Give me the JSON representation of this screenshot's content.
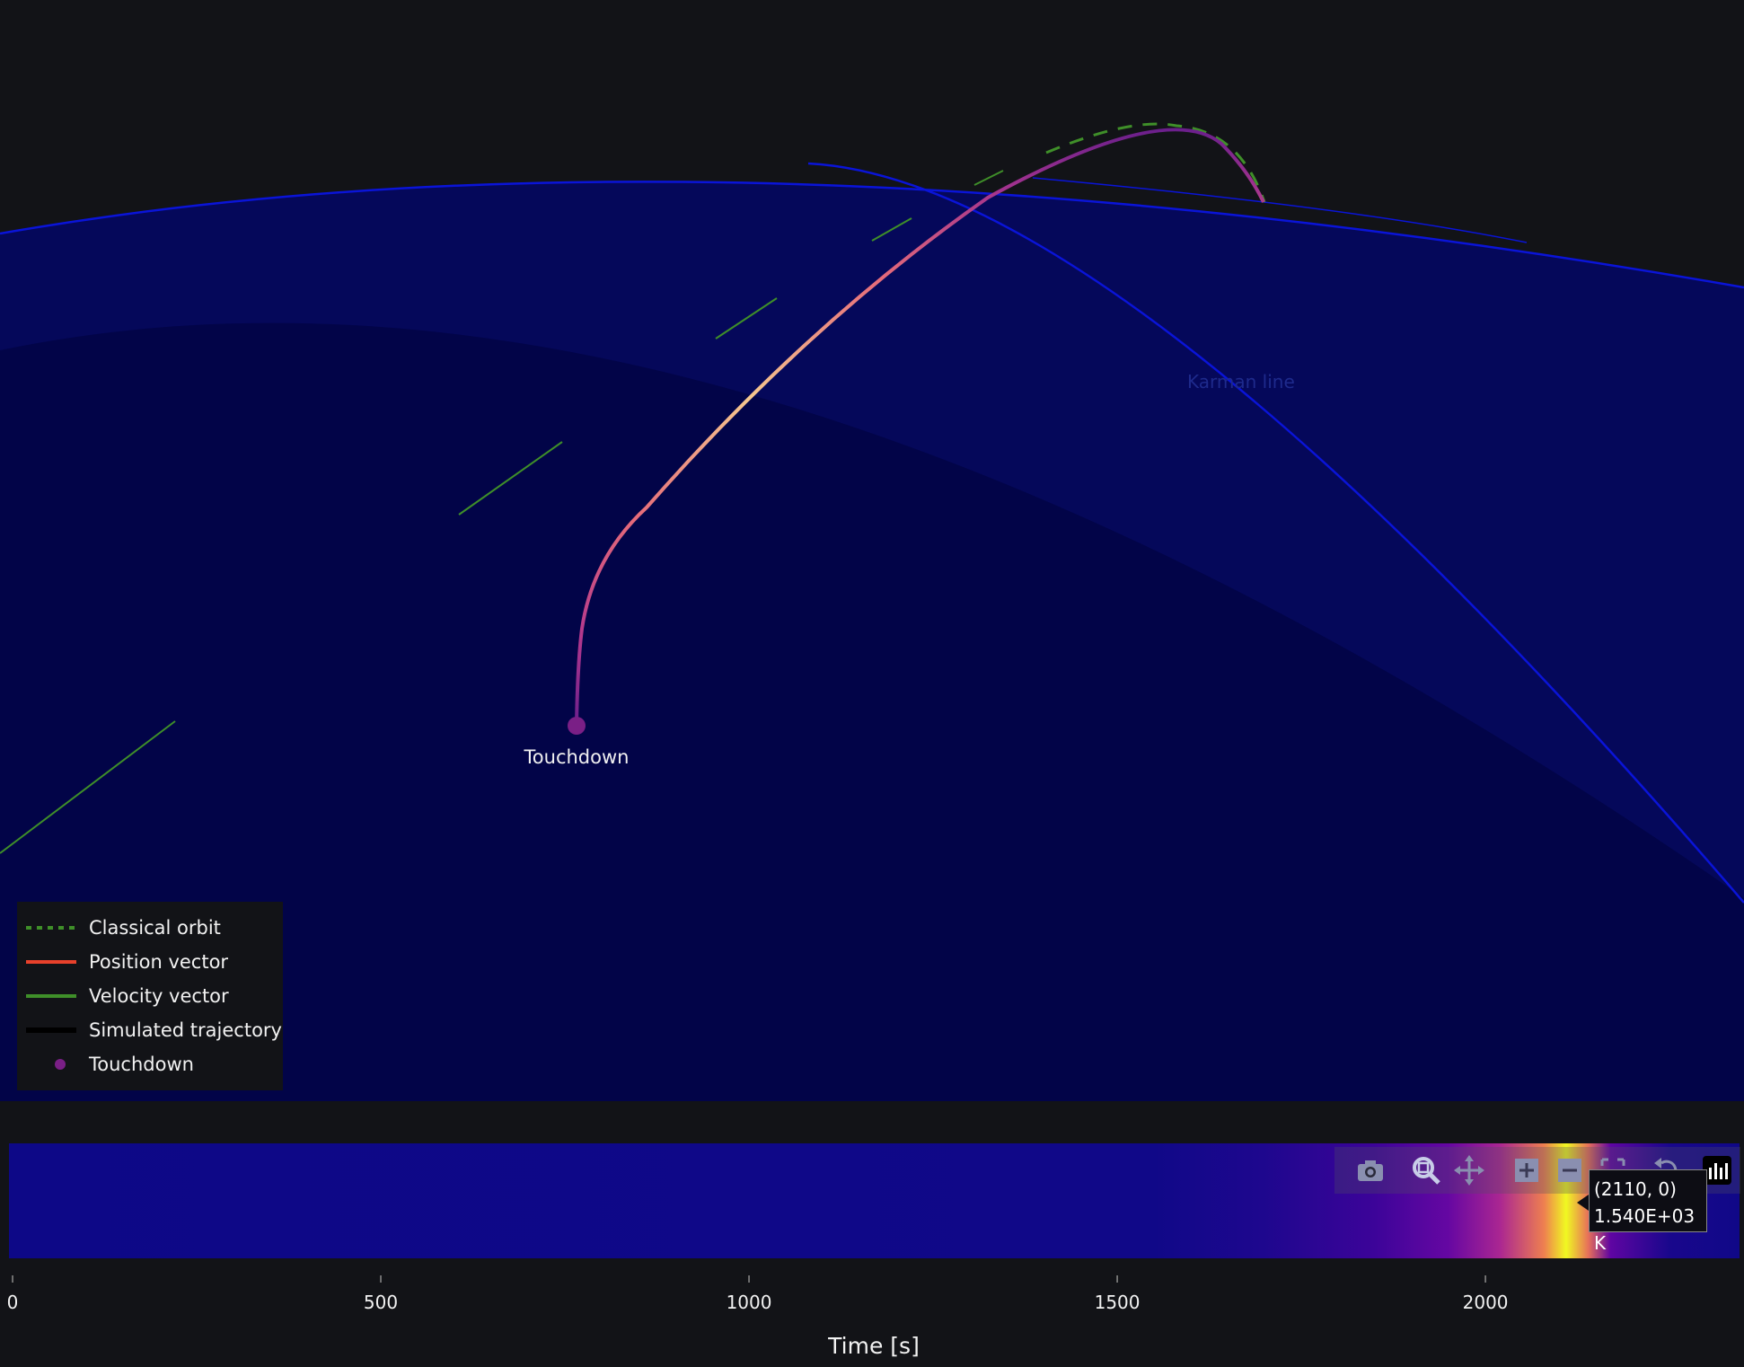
{
  "chart_data": [
    {
      "type": "line",
      "title": "",
      "annotations": [
        {
          "text": "Touchdown"
        },
        {
          "text": "Karman line"
        }
      ],
      "legend": {
        "placement": "bottom-left",
        "entries": [
          {
            "name": "Classical orbit",
            "color": "#3f8f29",
            "style": "dotted"
          },
          {
            "name": "Position vector",
            "color": "#e8412b",
            "style": "solid"
          },
          {
            "name": "Velocity vector",
            "color": "#3f8f29",
            "style": "solid"
          },
          {
            "name": "Simulated trajectory",
            "color": "#000000",
            "style": "solid"
          },
          {
            "name": "Touchdown",
            "color": "#7a1f86",
            "style": "marker"
          }
        ]
      },
      "colors": {
        "space_background": "#121317",
        "atmosphere": "#05085a",
        "planet": "#020448",
        "boundary_line": "#0a14d8",
        "trajectory_gradient": [
          "#6b1f8c",
          "#b3388d",
          "#e56b7a",
          "#f6b887",
          "#fbe7b0"
        ]
      }
    },
    {
      "type": "heatmap",
      "xlabel": "Time [s]",
      "xlim": [
        0,
        2345
      ],
      "xticks": [
        0,
        500,
        1000,
        1500,
        2000
      ],
      "xtick_labels": [
        "0",
        "500",
        "1000",
        "1500",
        "2000"
      ],
      "ylabel": "",
      "value_unit": "K",
      "colorscale": "plasma",
      "temperature_profile": [
        {
          "t": 0,
          "value": 320
        },
        {
          "t": 1550,
          "value": 330
        },
        {
          "t": 1700,
          "value": 380
        },
        {
          "t": 1850,
          "value": 480
        },
        {
          "t": 1950,
          "value": 620
        },
        {
          "t": 2020,
          "value": 880
        },
        {
          "t": 2080,
          "value": 1250
        },
        {
          "t": 2110,
          "value": 1540
        },
        {
          "t": 2140,
          "value": 1200
        },
        {
          "t": 2170,
          "value": 600
        },
        {
          "t": 2250,
          "value": 360
        },
        {
          "t": 2345,
          "value": 330
        }
      ],
      "hover": {
        "point": "(2110, 0)",
        "value": "1.540E+03 K"
      }
    }
  ],
  "modebar": {
    "buttons": [
      "camera-icon",
      "zoom-icon",
      "pan-icon",
      "zoom-in-icon",
      "zoom-out-icon",
      "autoscale-icon",
      "reset-axes-icon",
      "plotly-logo-icon"
    ]
  }
}
